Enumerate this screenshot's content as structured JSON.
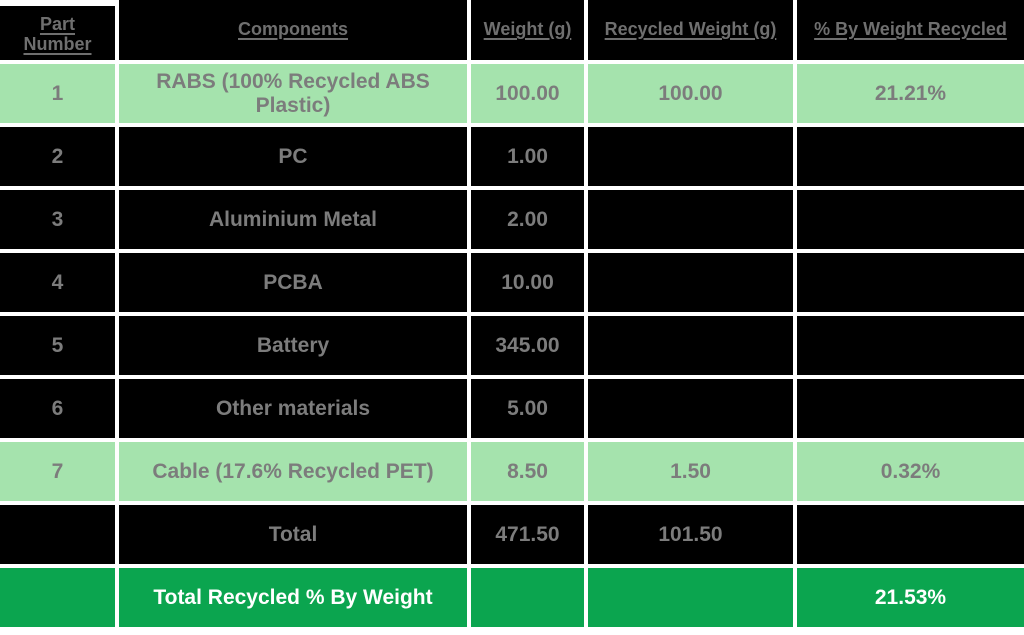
{
  "colors": {
    "cell_black": "#000000",
    "row_highlight_green": "#a5e3ad",
    "summary_green": "#0ba54f",
    "header_text_gray": "#6f6f6f",
    "body_text_gray": "#7c7c7c",
    "summary_text_white": "#ffffff"
  },
  "table": {
    "columns": [
      "Part Number",
      "Components",
      "Weight (g)",
      "Recycled Weight (g)",
      "% By Weight Recycled"
    ],
    "rows": [
      {
        "part": "1",
        "component": "RABS (100% Recycled ABS Plastic)",
        "weight": "100.00",
        "recycled": "100.00",
        "pct": "21.21%",
        "highlighted": true
      },
      {
        "part": "2",
        "component": "PC",
        "weight": "1.00",
        "recycled": "",
        "pct": "",
        "highlighted": false
      },
      {
        "part": "3",
        "component": "Aluminium Metal",
        "weight": "2.00",
        "recycled": "",
        "pct": "",
        "highlighted": false
      },
      {
        "part": "4",
        "component": "PCBA",
        "weight": "10.00",
        "recycled": "",
        "pct": "",
        "highlighted": false
      },
      {
        "part": "5",
        "component": "Battery",
        "weight": "345.00",
        "recycled": "",
        "pct": "",
        "highlighted": false
      },
      {
        "part": "6",
        "component": "Other materials",
        "weight": "5.00",
        "recycled": "",
        "pct": "",
        "highlighted": false
      },
      {
        "part": "7",
        "component": "Cable (17.6% Recycled PET)",
        "weight": "8.50",
        "recycled": "1.50",
        "pct": "0.32%",
        "highlighted": true
      }
    ],
    "total_row": {
      "part": "",
      "label": "Total",
      "weight": "471.50",
      "recycled": "101.50",
      "pct": ""
    },
    "summary_row": {
      "part": "",
      "label": "Total Recycled % By Weight",
      "weight": "",
      "recycled": "",
      "pct": "21.53%"
    }
  },
  "chart_data": {
    "type": "table",
    "columns": [
      "Part Number",
      "Components",
      "Weight (g)",
      "Recycled Weight (g)",
      "% By Weight Recycled"
    ],
    "rows": [
      [
        "1",
        "RABS (100% Recycled ABS Plastic)",
        100.0,
        100.0,
        "21.21%"
      ],
      [
        "2",
        "PC",
        1.0,
        null,
        null
      ],
      [
        "3",
        "Aluminium Metal",
        2.0,
        null,
        null
      ],
      [
        "4",
        "PCBA",
        10.0,
        null,
        null
      ],
      [
        "5",
        "Battery",
        345.0,
        null,
        null
      ],
      [
        "6",
        "Other materials",
        5.0,
        null,
        null
      ],
      [
        "7",
        "Cable (17.6% Recycled PET)",
        8.5,
        1.5,
        "0.32%"
      ],
      [
        "",
        "Total",
        471.5,
        101.5,
        null
      ],
      [
        "",
        "Total Recycled % By Weight",
        null,
        null,
        "21.53%"
      ]
    ]
  }
}
